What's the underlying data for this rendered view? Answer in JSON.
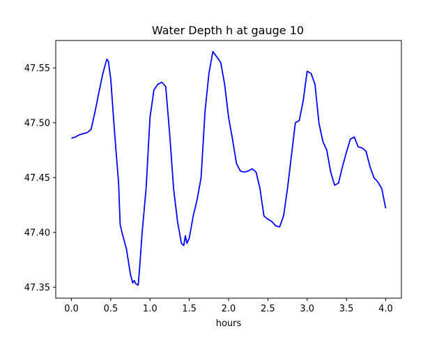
{
  "chart_data": {
    "type": "line",
    "title": "Water Depth h at gauge 10",
    "xlabel": "hours",
    "ylabel": "",
    "xlim": [
      -0.2,
      4.2
    ],
    "ylim": [
      47.34,
      47.575
    ],
    "xticks": [
      0.0,
      0.5,
      1.0,
      1.5,
      2.0,
      2.5,
      3.0,
      3.5,
      4.0
    ],
    "xtick_labels": [
      "0.0",
      "0.5",
      "1.0",
      "1.5",
      "2.0",
      "2.5",
      "3.0",
      "3.5",
      "4.0"
    ],
    "yticks": [
      47.35,
      47.4,
      47.45,
      47.5,
      47.55
    ],
    "ytick_labels": [
      "47.35",
      "47.40",
      "47.45",
      "47.50",
      "47.55"
    ],
    "grid": false,
    "legend": null,
    "series": [
      {
        "color": "#0000ff",
        "x": [
          0.0,
          0.05,
          0.1,
          0.15,
          0.2,
          0.25,
          0.3,
          0.35,
          0.4,
          0.45,
          0.47,
          0.5,
          0.53,
          0.55,
          0.6,
          0.62,
          0.65,
          0.7,
          0.75,
          0.78,
          0.8,
          0.82,
          0.85,
          0.87,
          0.9,
          0.95,
          1.0,
          1.05,
          1.1,
          1.15,
          1.2,
          1.25,
          1.3,
          1.35,
          1.4,
          1.43,
          1.45,
          1.47,
          1.5,
          1.55,
          1.6,
          1.65,
          1.7,
          1.75,
          1.8,
          1.85,
          1.9,
          1.95,
          2.0,
          2.05,
          2.1,
          2.15,
          2.2,
          2.25,
          2.3,
          2.35,
          2.4,
          2.45,
          2.5,
          2.55,
          2.6,
          2.65,
          2.7,
          2.75,
          2.8,
          2.85,
          2.9,
          2.95,
          3.0,
          3.05,
          3.1,
          3.15,
          3.2,
          3.25,
          3.3,
          3.35,
          3.4,
          3.45,
          3.5,
          3.55,
          3.6,
          3.65,
          3.7,
          3.75,
          3.8,
          3.85,
          3.9,
          3.95,
          4.0
        ],
        "y": [
          47.486,
          47.487,
          47.489,
          47.49,
          47.491,
          47.494,
          47.51,
          47.528,
          47.545,
          47.558,
          47.556,
          47.54,
          47.51,
          47.49,
          47.445,
          47.407,
          47.398,
          47.385,
          47.362,
          47.354,
          47.356,
          47.353,
          47.352,
          47.37,
          47.4,
          47.44,
          47.505,
          47.53,
          47.535,
          47.537,
          47.533,
          47.49,
          47.44,
          47.41,
          47.39,
          47.388,
          47.397,
          47.39,
          47.395,
          47.415,
          47.43,
          47.45,
          47.51,
          47.545,
          47.565,
          47.56,
          47.555,
          47.535,
          47.505,
          47.485,
          47.463,
          47.456,
          47.455,
          47.456,
          47.458,
          47.455,
          47.44,
          47.415,
          47.412,
          47.41,
          47.406,
          47.405,
          47.415,
          47.44,
          47.47,
          47.5,
          47.502,
          47.52,
          47.547,
          47.545,
          47.535,
          47.5,
          47.483,
          47.475,
          47.455,
          47.443,
          47.445,
          47.46,
          47.473,
          47.485,
          47.487,
          47.478,
          47.477,
          47.474,
          47.46,
          47.45,
          47.446,
          47.44,
          47.422
        ]
      }
    ]
  }
}
